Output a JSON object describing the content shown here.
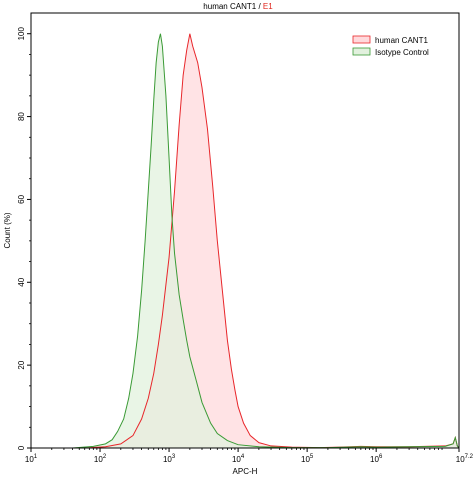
{
  "chart_data": {
    "type": "area",
    "title": {
      "main": "human CANT1",
      "sep": " / ",
      "suffix": "E1"
    },
    "title_suffix_color": "#e0261e",
    "xlabel": "APC-H",
    "ylabel": "Count (%)",
    "x_scale": "log",
    "xlim": [
      10,
      15848932
    ],
    "ylim": [
      0,
      105
    ],
    "x_ticks": [
      {
        "value": 10,
        "base": "10",
        "exp": "1"
      },
      {
        "value": 100,
        "base": "10",
        "exp": "2"
      },
      {
        "value": 1000,
        "base": "10",
        "exp": "3"
      },
      {
        "value": 10000,
        "base": "10",
        "exp": "4"
      },
      {
        "value": 100000,
        "base": "10",
        "exp": "5"
      },
      {
        "value": 1000000,
        "base": "10",
        "exp": "6"
      },
      {
        "value": 15848932,
        "base": "10",
        "exp": "7.2"
      }
    ],
    "y_ticks": [
      "0",
      "20",
      "40",
      "60",
      "80",
      "100"
    ],
    "grid": false,
    "legend_position": "top-right",
    "series": [
      {
        "name": "human CANT1",
        "line_color": "#e8262a",
        "fill_color": "#ffd9dc",
        "points": [
          [
            10,
            0
          ],
          [
            60,
            0
          ],
          [
            120,
            0.3
          ],
          [
            200,
            1
          ],
          [
            300,
            3
          ],
          [
            400,
            7
          ],
          [
            500,
            12
          ],
          [
            600,
            18
          ],
          [
            700,
            25
          ],
          [
            800,
            32
          ],
          [
            1000,
            46
          ],
          [
            1200,
            62
          ],
          [
            1400,
            78
          ],
          [
            1600,
            90
          ],
          [
            1800,
            96
          ],
          [
            2000,
            100
          ],
          [
            2200,
            97
          ],
          [
            2600,
            93
          ],
          [
            3000,
            87
          ],
          [
            3600,
            77
          ],
          [
            4300,
            63
          ],
          [
            5000,
            50
          ],
          [
            6000,
            37
          ],
          [
            7000,
            26
          ],
          [
            8000,
            19
          ],
          [
            9000,
            14
          ],
          [
            10000,
            10
          ],
          [
            12000,
            6
          ],
          [
            15000,
            3
          ],
          [
            20000,
            1.3
          ],
          [
            30000,
            0.5
          ],
          [
            60000,
            0.2
          ],
          [
            150000,
            0.1
          ],
          [
            300000,
            0.2
          ],
          [
            600000,
            0.4
          ],
          [
            1000000,
            0.3
          ],
          [
            3000000,
            0.3
          ],
          [
            10000000,
            0.5
          ],
          [
            13000000,
            1
          ],
          [
            14000000,
            2.5
          ],
          [
            15000000,
            0.5
          ],
          [
            15848932,
            0
          ]
        ]
      },
      {
        "name": "Isotype Control",
        "line_color": "#3a9a35",
        "fill_color": "#e2f1de",
        "points": [
          [
            10,
            0
          ],
          [
            40,
            0
          ],
          [
            80,
            0.4
          ],
          [
            120,
            1
          ],
          [
            150,
            2
          ],
          [
            180,
            4
          ],
          [
            220,
            7
          ],
          [
            260,
            12
          ],
          [
            300,
            18
          ],
          [
            350,
            27
          ],
          [
            400,
            38
          ],
          [
            450,
            50
          ],
          [
            500,
            62
          ],
          [
            550,
            73
          ],
          [
            600,
            84
          ],
          [
            650,
            93
          ],
          [
            700,
            98
          ],
          [
            750,
            100
          ],
          [
            800,
            97
          ],
          [
            900,
            85
          ],
          [
            1000,
            70
          ],
          [
            1100,
            56
          ],
          [
            1200,
            47
          ],
          [
            1400,
            37
          ],
          [
            1600,
            31
          ],
          [
            1800,
            26
          ],
          [
            2000,
            22
          ],
          [
            2500,
            16
          ],
          [
            3000,
            11
          ],
          [
            4000,
            6
          ],
          [
            5000,
            3.5
          ],
          [
            7000,
            1.8
          ],
          [
            10000,
            0.8
          ],
          [
            20000,
            0.3
          ],
          [
            60000,
            0.1
          ],
          [
            200000,
            0.1
          ],
          [
            600000,
            0.3
          ],
          [
            1000000,
            0.2
          ],
          [
            3000000,
            0.3
          ],
          [
            10000000,
            0.4
          ],
          [
            13000000,
            1
          ],
          [
            14000000,
            2.5
          ],
          [
            15000000,
            0.5
          ],
          [
            15848932,
            0
          ]
        ]
      }
    ]
  }
}
